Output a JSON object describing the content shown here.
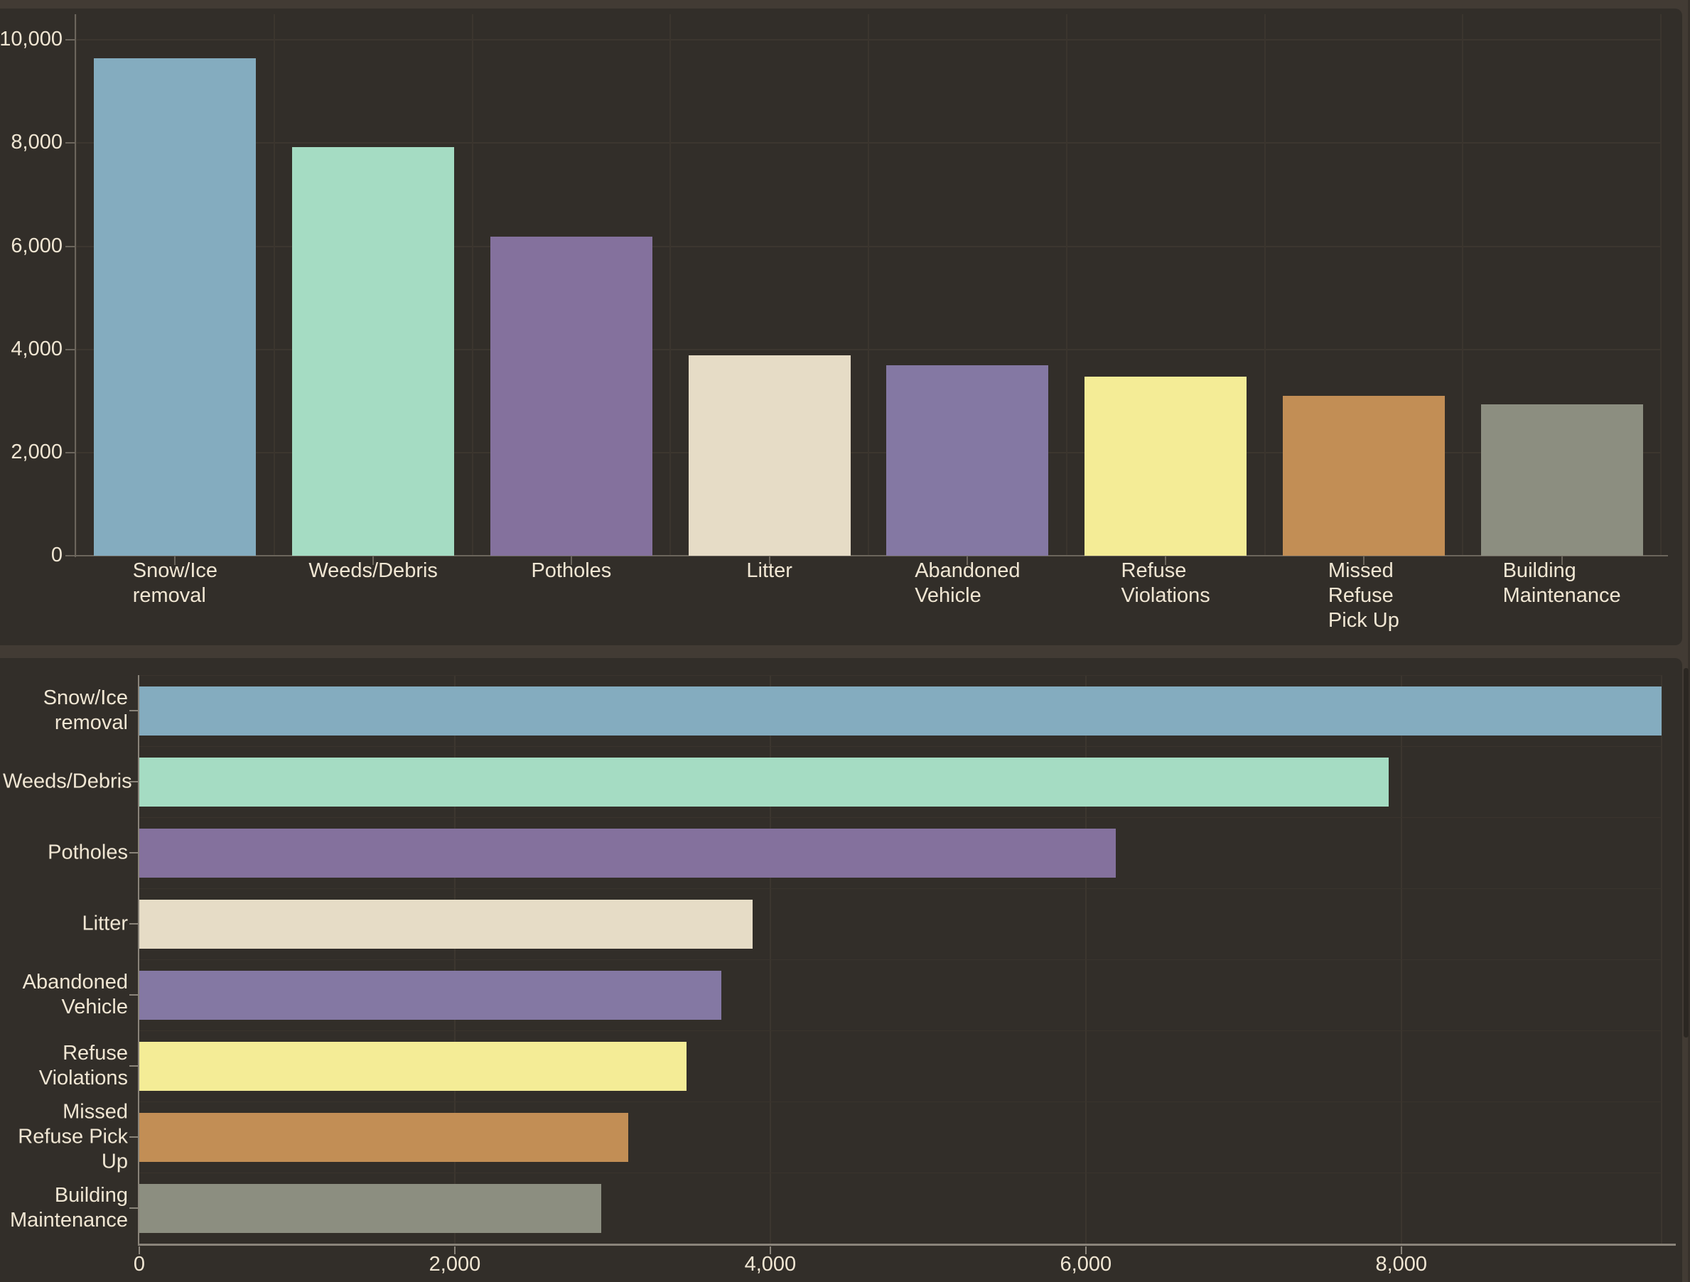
{
  "window": {
    "background": "#423B34",
    "panel_background": "#322E29"
  },
  "palette": {
    "text": "#F0E6D3",
    "gridline": "#3C362F",
    "row_gridline": "#3A342D",
    "axis_top_chart": "#6B655C",
    "axis_bottom_chart": "#8A847A"
  },
  "chart_data": [
    {
      "type": "bar",
      "orientation": "vertical",
      "title": "",
      "xlabel": "",
      "ylabel": "",
      "categories": [
        "Snow/Ice removal",
        "Weeds/Debris",
        "Potholes",
        "Litter",
        "Abandoned Vehicle",
        "Refuse Violations",
        "Missed Refuse Pick Up",
        "Building Maintenance"
      ],
      "values": [
        9650,
        7920,
        6190,
        3890,
        3690,
        3470,
        3100,
        2930
      ],
      "bar_colors": [
        "#84ACBF",
        "#A5DCC3",
        "#84719D",
        "#E6DCC6",
        "#8478A3",
        "#F4EC96",
        "#C28E55",
        "#8C8E80"
      ],
      "category_label_lines": [
        [
          "Snow/Ice",
          "removal"
        ],
        [
          "Weeds/Debris"
        ],
        [
          "Potholes"
        ],
        [
          "Litter"
        ],
        [
          "Abandoned",
          "Vehicle"
        ],
        [
          "Refuse",
          "Violations"
        ],
        [
          "Missed",
          "Refuse",
          "Pick Up"
        ],
        [
          "Building",
          "Maintenance"
        ]
      ],
      "y_tick_labels": [
        "0",
        "2,000",
        "4,000",
        "6,000",
        "8,000",
        "10,000"
      ],
      "y_tick_values": [
        0,
        2000,
        4000,
        6000,
        8000,
        10000
      ],
      "ylim": [
        0,
        10500
      ],
      "grid": true,
      "legend": false
    },
    {
      "type": "bar",
      "orientation": "horizontal",
      "title": "",
      "xlabel": "",
      "ylabel": "",
      "categories": [
        "Snow/Ice removal",
        "Weeds/Debris",
        "Potholes",
        "Litter",
        "Abandoned Vehicle",
        "Refuse Violations",
        "Missed Refuse Pick Up",
        "Building Maintenance"
      ],
      "values": [
        9650,
        7920,
        6190,
        3890,
        3690,
        3470,
        3100,
        2930
      ],
      "bar_colors": [
        "#84ACBF",
        "#A5DCC3",
        "#84719D",
        "#E6DCC6",
        "#8478A3",
        "#F4EC96",
        "#C28E55",
        "#8C8E80"
      ],
      "category_label_lines": [
        [
          "Snow/Ice",
          "removal"
        ],
        [
          "Weeds/Debris"
        ],
        [
          "Potholes"
        ],
        [
          "Litter"
        ],
        [
          "Abandoned",
          "Vehicle"
        ],
        [
          "Refuse",
          "Violations"
        ],
        [
          "Missed",
          "Refuse Pick",
          "Up"
        ],
        [
          "Building",
          "Maintenance"
        ]
      ],
      "x_tick_labels": [
        "0",
        "2,000",
        "4,000",
        "6,000",
        "8,000"
      ],
      "x_tick_values": [
        0,
        2000,
        4000,
        6000,
        8000
      ],
      "xlim": [
        0,
        9650
      ],
      "grid": true,
      "legend": false
    }
  ]
}
